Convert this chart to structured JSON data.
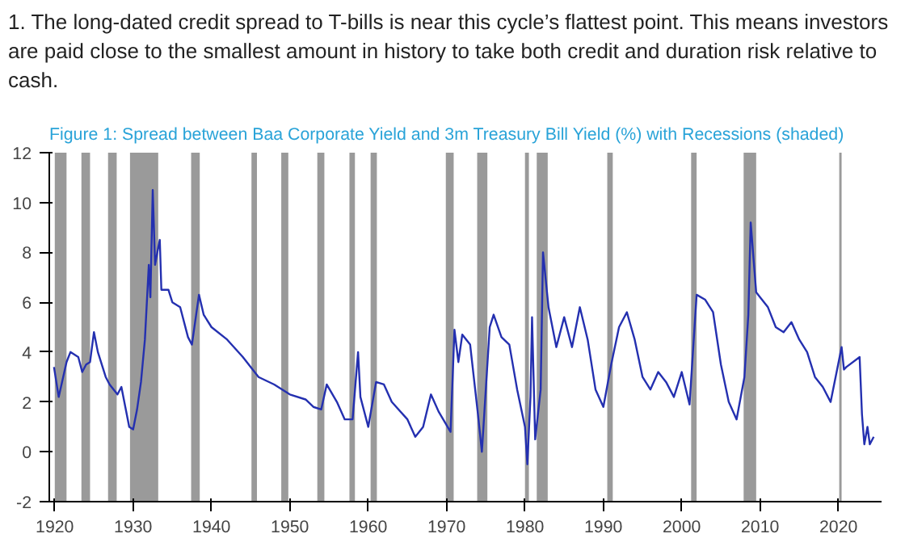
{
  "chart_data": {
    "type": "line",
    "title": "1. The long-dated credit spread to T-bills is near this cycle’s flattest point. This means investors are paid close to the smallest amount in history to take both credit and duration risk relative to cash.",
    "subtitle": "Figure 1: Spread between Baa Corporate Yield and 3m Treasury Bill Yield (%) with Recessions (shaded)",
    "xlim": [
      1919.3,
      2025.5
    ],
    "ylim": [
      -2,
      12
    ],
    "xticks": [
      1920,
      1930,
      1940,
      1950,
      1960,
      1970,
      1980,
      1990,
      2000,
      2010,
      2020
    ],
    "yticks": [
      -2,
      0,
      2,
      4,
      6,
      8,
      10,
      12
    ],
    "grid": false,
    "series": [
      {
        "color": "#2430b0",
        "x": [
          1919.9,
          1920.5,
          1921.5,
          1922,
          1923,
          1923.5,
          1924,
          1924.5,
          1925,
          1925.5,
          1926.5,
          1927,
          1928,
          1928.5,
          1929,
          1929.5,
          1930,
          1930.5,
          1931,
          1931.5,
          1932,
          1932.2,
          1932.5,
          1932.8,
          1933.2,
          1933.4,
          1933.6,
          1934.5,
          1935,
          1936,
          1937,
          1937.5,
          1938.4,
          1939,
          1940,
          1942,
          1944,
          1946,
          1948,
          1950,
          1952,
          1953,
          1954,
          1954.7,
          1956,
          1957,
          1958,
          1958.7,
          1959,
          1960,
          1961,
          1962,
          1963,
          1965,
          1966,
          1967,
          1968,
          1969,
          1970.5,
          1971,
          1971.5,
          1972,
          1973,
          1974,
          1974.5,
          1975,
          1975.5,
          1976,
          1977,
          1978,
          1979,
          1980,
          1980.3,
          1980.7,
          1980.9,
          1981.3,
          1982,
          1982.3,
          1983,
          1984,
          1985,
          1986,
          1987,
          1988,
          1989,
          1990,
          1991,
          1992,
          1993,
          1994,
          1995,
          1996,
          1997,
          1998,
          1999,
          2000,
          2001,
          2001.9,
          2003,
          2004,
          2005,
          2006,
          2007,
          2008,
          2008.5,
          2008.8,
          2009.5,
          2010,
          2011,
          2012,
          2013,
          2014,
          2015,
          2016,
          2017,
          2018,
          2019,
          2020.4,
          2020.7,
          2021,
          2022.7,
          2023,
          2023.3,
          2023.7,
          2024,
          2024.5
        ],
        "values": [
          3.4,
          2.2,
          3.6,
          4.0,
          3.8,
          3.2,
          3.5,
          3.6,
          4.8,
          4.0,
          3.0,
          2.7,
          2.3,
          2.6,
          1.8,
          1.0,
          0.9,
          1.7,
          2.8,
          4.5,
          7.5,
          6.2,
          10.5,
          7.5,
          8.2,
          8.5,
          6.5,
          6.5,
          6.0,
          5.8,
          4.6,
          4.3,
          6.3,
          5.5,
          5.0,
          4.5,
          3.8,
          3.0,
          2.7,
          2.3,
          2.1,
          1.8,
          1.7,
          2.7,
          2.0,
          1.3,
          1.3,
          4.0,
          2.2,
          1.0,
          2.8,
          2.7,
          2.0,
          1.3,
          0.6,
          1.0,
          2.3,
          1.6,
          0.8,
          4.9,
          3.6,
          4.7,
          4.3,
          1.5,
          0.0,
          2.5,
          5.0,
          5.5,
          4.6,
          4.3,
          2.5,
          1.0,
          -0.5,
          2.2,
          5.4,
          0.5,
          2.5,
          8.0,
          5.8,
          4.2,
          5.4,
          4.2,
          5.8,
          4.5,
          2.5,
          1.8,
          3.5,
          5.0,
          5.6,
          4.5,
          3.0,
          2.5,
          3.2,
          2.8,
          2.2,
          3.2,
          1.9,
          6.3,
          6.1,
          5.6,
          3.5,
          2.0,
          1.3,
          3.0,
          5.5,
          9.2,
          6.4,
          6.2,
          5.8,
          5.0,
          4.8,
          5.2,
          4.5,
          4.0,
          3.0,
          2.6,
          2.0,
          4.2,
          3.3,
          3.4,
          3.8,
          1.5,
          0.3,
          1.0,
          0.3,
          0.6
        ]
      }
    ],
    "bands": [
      {
        "axis": "x",
        "from": 1920.0,
        "to": 1921.5,
        "color": "#9a9a9a"
      },
      {
        "axis": "x",
        "from": 1923.4,
        "to": 1924.5,
        "color": "#9a9a9a"
      },
      {
        "axis": "x",
        "from": 1926.8,
        "to": 1927.9,
        "color": "#9a9a9a"
      },
      {
        "axis": "x",
        "from": 1929.6,
        "to": 1933.2,
        "color": "#9a9a9a"
      },
      {
        "axis": "x",
        "from": 1937.4,
        "to": 1938.5,
        "color": "#9a9a9a"
      },
      {
        "axis": "x",
        "from": 1945.1,
        "to": 1945.8,
        "color": "#9a9a9a"
      },
      {
        "axis": "x",
        "from": 1948.9,
        "to": 1949.8,
        "color": "#9a9a9a"
      },
      {
        "axis": "x",
        "from": 1953.5,
        "to": 1954.4,
        "color": "#9a9a9a"
      },
      {
        "axis": "x",
        "from": 1957.6,
        "to": 1958.3,
        "color": "#9a9a9a"
      },
      {
        "axis": "x",
        "from": 1960.3,
        "to": 1961.1,
        "color": "#9a9a9a"
      },
      {
        "axis": "x",
        "from": 1969.9,
        "to": 1970.9,
        "color": "#9a9a9a"
      },
      {
        "axis": "x",
        "from": 1973.9,
        "to": 1975.2,
        "color": "#9a9a9a"
      },
      {
        "axis": "x",
        "from": 1980.0,
        "to": 1980.5,
        "color": "#9a9a9a"
      },
      {
        "axis": "x",
        "from": 1981.5,
        "to": 1982.9,
        "color": "#9a9a9a"
      },
      {
        "axis": "x",
        "from": 1990.5,
        "to": 1991.2,
        "color": "#9a9a9a"
      },
      {
        "axis": "x",
        "from": 2001.2,
        "to": 2001.9,
        "color": "#9a9a9a"
      },
      {
        "axis": "x",
        "from": 2007.9,
        "to": 2009.5,
        "color": "#9a9a9a"
      },
      {
        "axis": "x",
        "from": 2020.1,
        "to": 2020.4,
        "color": "#9a9a9a"
      }
    ]
  }
}
